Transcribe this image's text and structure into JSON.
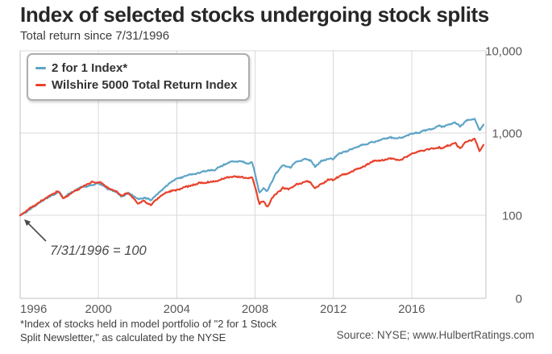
{
  "chart_data": {
    "type": "line",
    "title": "Index of selected stocks undergoing stock splits",
    "subtitle": "Total return since 7/31/1996",
    "y_scale": "log",
    "y_axis_side": "right",
    "grid": true,
    "legend_position": "top-left",
    "x_range_years": [
      1996.58,
      2020.3
    ],
    "y_ticks": [
      {
        "label": "10,000",
        "value": 10000
      },
      {
        "label": "1,000",
        "value": 1000
      },
      {
        "label": "100",
        "value": 100
      },
      {
        "label": "0",
        "value": 0
      }
    ],
    "x_ticks": [
      {
        "label": "1996",
        "year": 1996
      },
      {
        "label": "2000",
        "year": 2000
      },
      {
        "label": "2004",
        "year": 2004
      },
      {
        "label": "2008",
        "year": 2008
      },
      {
        "label": "2012",
        "year": 2012
      },
      {
        "label": "2016",
        "year": 2016
      }
    ],
    "series": [
      {
        "name": "2 for 1 Index*",
        "color": "#5da4c6",
        "points": [
          [
            1996.58,
            100
          ],
          [
            1997.1,
            118
          ],
          [
            1997.6,
            143
          ],
          [
            1998.1,
            170
          ],
          [
            1998.55,
            192
          ],
          [
            1998.8,
            158
          ],
          [
            1999.3,
            198
          ],
          [
            1999.9,
            228
          ],
          [
            2000.3,
            244
          ],
          [
            2000.7,
            238
          ],
          [
            2001.1,
            210
          ],
          [
            2001.5,
            190
          ],
          [
            2001.78,
            168
          ],
          [
            2002.1,
            188
          ],
          [
            2002.6,
            152
          ],
          [
            2002.9,
            162
          ],
          [
            2003.25,
            150
          ],
          [
            2003.7,
            196
          ],
          [
            2004.2,
            248
          ],
          [
            2004.65,
            285
          ],
          [
            2005.2,
            308
          ],
          [
            2005.7,
            335
          ],
          [
            2006.2,
            352
          ],
          [
            2006.7,
            378
          ],
          [
            2007.2,
            430
          ],
          [
            2007.8,
            465
          ],
          [
            2008.1,
            420
          ],
          [
            2008.45,
            435
          ],
          [
            2008.8,
            190
          ],
          [
            2009.0,
            215
          ],
          [
            2009.2,
            200
          ],
          [
            2009.6,
            320
          ],
          [
            2010.0,
            400
          ],
          [
            2010.35,
            375
          ],
          [
            2010.7,
            450
          ],
          [
            2011.1,
            478
          ],
          [
            2011.4,
            468
          ],
          [
            2011.65,
            380
          ],
          [
            2011.95,
            450
          ],
          [
            2012.35,
            500
          ],
          [
            2012.55,
            480
          ],
          [
            2012.9,
            560
          ],
          [
            2013.4,
            620
          ],
          [
            2014.0,
            690
          ],
          [
            2014.4,
            750
          ],
          [
            2015.0,
            835
          ],
          [
            2015.5,
            890
          ],
          [
            2015.75,
            835
          ],
          [
            2016.1,
            860
          ],
          [
            2016.6,
            1000
          ],
          [
            2017.0,
            1050
          ],
          [
            2017.5,
            1120
          ],
          [
            2018.0,
            1210
          ],
          [
            2018.15,
            1150
          ],
          [
            2018.5,
            1310
          ],
          [
            2018.8,
            1340
          ],
          [
            2019.05,
            1190
          ],
          [
            2019.35,
            1400
          ],
          [
            2019.8,
            1480
          ],
          [
            2020.05,
            1060
          ],
          [
            2020.25,
            1250
          ]
        ]
      },
      {
        "name": "Wilshire 5000 Total Return Index",
        "color": "#e8432d",
        "points": [
          [
            1996.58,
            100
          ],
          [
            1997.1,
            120
          ],
          [
            1997.6,
            146
          ],
          [
            1998.1,
            173
          ],
          [
            1998.55,
            194
          ],
          [
            1998.8,
            161
          ],
          [
            1999.3,
            200
          ],
          [
            1999.9,
            232
          ],
          [
            2000.3,
            258
          ],
          [
            2000.7,
            248
          ],
          [
            2001.1,
            215
          ],
          [
            2001.5,
            193
          ],
          [
            2001.78,
            172
          ],
          [
            2002.1,
            184
          ],
          [
            2002.6,
            139
          ],
          [
            2002.9,
            147
          ],
          [
            2003.25,
            133
          ],
          [
            2003.7,
            167
          ],
          [
            2004.2,
            196
          ],
          [
            2004.65,
            213
          ],
          [
            2005.2,
            225
          ],
          [
            2005.7,
            244
          ],
          [
            2006.2,
            252
          ],
          [
            2006.7,
            268
          ],
          [
            2007.2,
            290
          ],
          [
            2007.8,
            302
          ],
          [
            2008.1,
            278
          ],
          [
            2008.45,
            285
          ],
          [
            2008.8,
            140
          ],
          [
            2009.0,
            152
          ],
          [
            2009.2,
            128
          ],
          [
            2009.6,
            184
          ],
          [
            2010.0,
            214
          ],
          [
            2010.35,
            205
          ],
          [
            2010.7,
            238
          ],
          [
            2011.1,
            256
          ],
          [
            2011.4,
            250
          ],
          [
            2011.65,
            214
          ],
          [
            2011.95,
            240
          ],
          [
            2012.35,
            272
          ],
          [
            2012.55,
            262
          ],
          [
            2012.9,
            300
          ],
          [
            2013.4,
            330
          ],
          [
            2014.0,
            380
          ],
          [
            2014.4,
            425
          ],
          [
            2015.0,
            470
          ],
          [
            2015.5,
            500
          ],
          [
            2015.75,
            468
          ],
          [
            2016.1,
            480
          ],
          [
            2016.6,
            560
          ],
          [
            2017.0,
            590
          ],
          [
            2017.5,
            635
          ],
          [
            2018.0,
            680
          ],
          [
            2018.15,
            640
          ],
          [
            2018.5,
            710
          ],
          [
            2018.8,
            740
          ],
          [
            2019.05,
            637
          ],
          [
            2019.35,
            770
          ],
          [
            2019.8,
            835
          ],
          [
            2020.05,
            595
          ],
          [
            2020.25,
            710
          ]
        ]
      }
    ],
    "annotation": {
      "text": "7/31/1996 = 100",
      "points_to": "series start at value 100 on 7/31/1996"
    }
  },
  "legend": [
    {
      "label": "2 for 1 Index*",
      "color": "#5da4c6"
    },
    {
      "label": "Wilshire 5000 Total Return Index",
      "color": "#e8432d"
    }
  ],
  "annotation": {
    "text": "7/31/1996 = 100"
  },
  "footnote": "*Index of stocks held in model portfolio of \"2 for 1 Stock\nSplit Newsletter,\" as calculated by the NYSE",
  "source": "Source: NYSE; www.HulbertRatings.com",
  "colors": {
    "blue_line": "#5da4c6",
    "red_line": "#e8432d",
    "grid": "#d9d9d9",
    "axis_border": "#c2c2c2",
    "title_text": "#272727",
    "tick_text": "#595959",
    "annotation_text": "#4a4a4a"
  }
}
